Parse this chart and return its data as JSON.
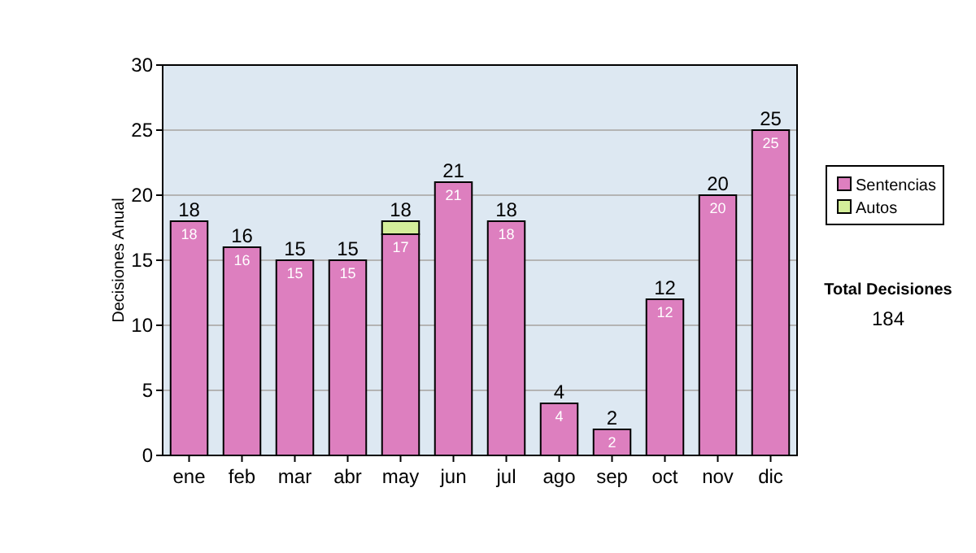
{
  "chart_data": {
    "type": "bar",
    "stacked": true,
    "ylabel": "Decisiones Anual",
    "categories": [
      "ene",
      "feb",
      "mar",
      "abr",
      "may",
      "jun",
      "jul",
      "ago",
      "sep",
      "oct",
      "nov",
      "dic"
    ],
    "series": [
      {
        "name": "Sentencias",
        "color": "#dd7fbf",
        "values": [
          18,
          16,
          15,
          15,
          17,
          21,
          18,
          4,
          2,
          12,
          20,
          25
        ],
        "value_labels": [
          "18",
          "16",
          "15",
          "15",
          "17",
          "21",
          "18",
          "4",
          "2",
          "12",
          "20",
          "25"
        ]
      },
      {
        "name": "Autos",
        "color": "#d4ee9a",
        "values": [
          null,
          null,
          null,
          null,
          1,
          null,
          null,
          null,
          null,
          null,
          null,
          null
        ]
      }
    ],
    "totals": [
      "18",
      "16",
      "15",
      "15",
      "18",
      "21",
      "18",
      "4",
      "2",
      "12",
      "20",
      "25"
    ],
    "ylim": [
      0,
      30
    ],
    "yticks": [
      0,
      5,
      10,
      15,
      20,
      25,
      30
    ],
    "grid": "y",
    "legend": "right",
    "annotations": [
      "Total Decisiones",
      "184"
    ]
  }
}
